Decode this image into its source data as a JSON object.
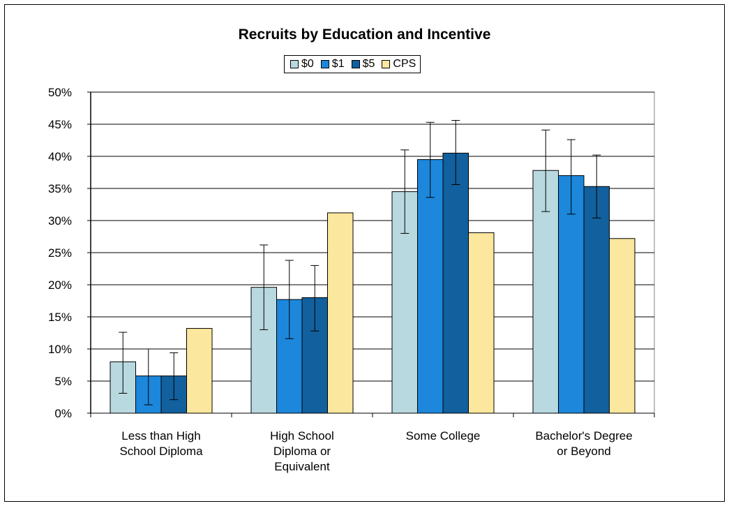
{
  "chart_data": {
    "type": "bar",
    "title": "Recruits by Education and Incentive",
    "categories": [
      "Less than High\nSchool Diploma",
      "High School\nDiploma or\nEquivalent",
      "Some College",
      "Bachelor's Degree\nor Beyond"
    ],
    "series": [
      {
        "name": "$0",
        "color": "#B8D9DF",
        "values": [
          8.0,
          19.6,
          34.5,
          37.8
        ],
        "error_low": [
          3.1,
          13.0,
          28.0,
          31.4
        ],
        "error_high": [
          12.6,
          26.2,
          41.0,
          44.1
        ]
      },
      {
        "name": "$1",
        "color": "#1C87DB",
        "values": [
          5.8,
          17.7,
          39.5,
          37.0
        ],
        "error_low": [
          1.3,
          11.6,
          33.6,
          31.0
        ],
        "error_high": [
          10.0,
          23.8,
          45.3,
          42.6
        ]
      },
      {
        "name": "$5",
        "color": "#12609D",
        "values": [
          5.8,
          18.0,
          40.5,
          35.3
        ],
        "error_low": [
          2.1,
          12.8,
          35.6,
          30.4
        ],
        "error_high": [
          9.4,
          23.0,
          45.6,
          40.2
        ]
      },
      {
        "name": "CPS",
        "color": "#FBE79D",
        "values": [
          13.2,
          31.2,
          28.1,
          27.2
        ]
      }
    ],
    "y_ticks": [
      "0%",
      "5%",
      "10%",
      "15%",
      "20%",
      "25%",
      "30%",
      "35%",
      "40%",
      "45%",
      "50%"
    ],
    "ylim": [
      0,
      50
    ],
    "grid": true,
    "legend_position": "top-center"
  }
}
